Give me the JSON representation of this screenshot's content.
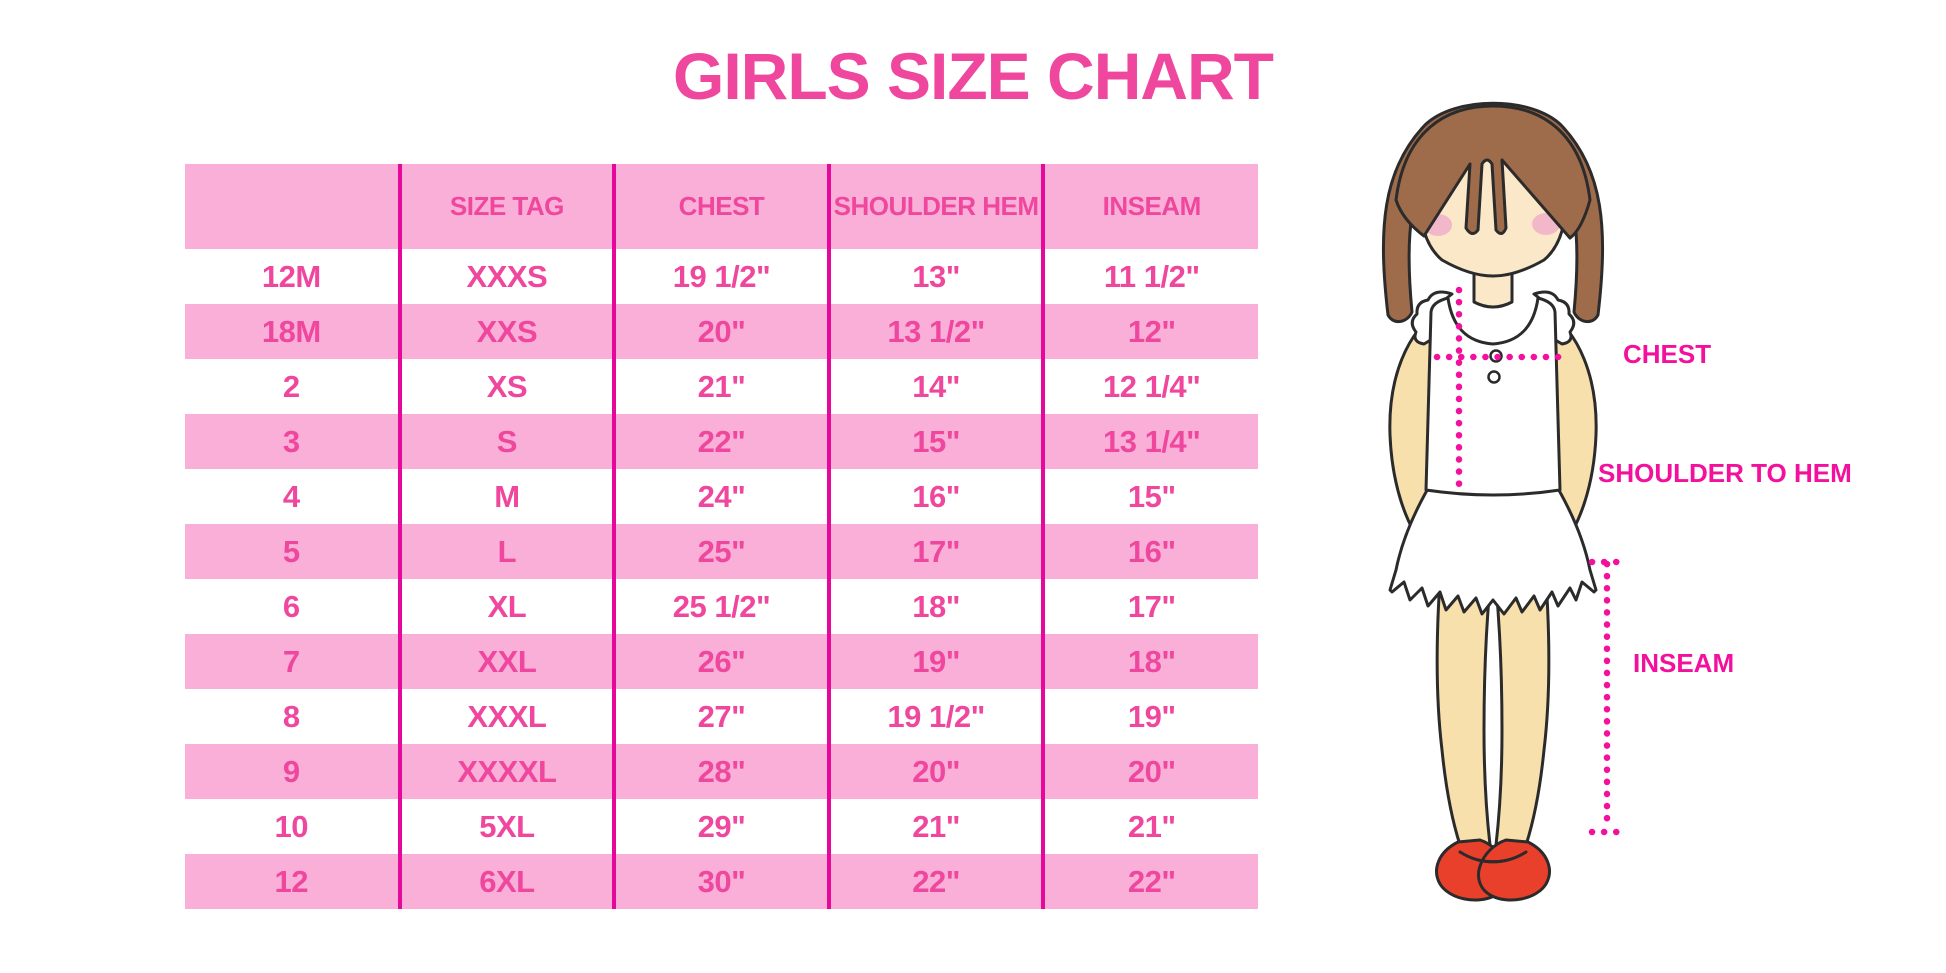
{
  "title": "GIRLS SIZE CHART",
  "colors": {
    "pink_band": "#F9AFD8",
    "divider": "#E6079B",
    "table_text": "#F0479E",
    "label_text": "#F2109C",
    "hair": "#9E6B4B",
    "skin": "#F7E0AC",
    "face": "#FAE8C8",
    "blush": "#F2B7C8",
    "shoe_red": "#E8402B",
    "outline": "#2B2B2B"
  },
  "diagram": {
    "labels": {
      "chest": "CHEST",
      "shoulder_to_hem": "SHOULDER TO HEM",
      "inseam": "INSEAM"
    }
  },
  "chart_data": {
    "type": "table",
    "title": "GIRLS SIZE CHART",
    "columns": [
      "",
      "SIZE TAG",
      "CHEST",
      "SHOULDER HEM",
      "INSEAM"
    ],
    "rows": [
      [
        "12M",
        "XXXS",
        "19 1/2\"",
        "13\"",
        "11 1/2\""
      ],
      [
        "18M",
        "XXS",
        "20\"",
        "13 1/2\"",
        "12\""
      ],
      [
        "2",
        "XS",
        "21\"",
        "14\"",
        "12 1/4\""
      ],
      [
        "3",
        "S",
        "22\"",
        "15\"",
        "13 1/4\""
      ],
      [
        "4",
        "M",
        "24\"",
        "16\"",
        "15\""
      ],
      [
        "5",
        "L",
        "25\"",
        "17\"",
        "16\""
      ],
      [
        "6",
        "XL",
        "25 1/2\"",
        "18\"",
        "17\""
      ],
      [
        "7",
        "XXL",
        "26\"",
        "19\"",
        "18\""
      ],
      [
        "8",
        "XXXL",
        "27\"",
        "19 1/2\"",
        "19\""
      ],
      [
        "9",
        "XXXXL",
        "28\"",
        "20\"",
        "20\""
      ],
      [
        "10",
        "5XL",
        "29\"",
        "21\"",
        "21\""
      ],
      [
        "12",
        "6XL",
        "30\"",
        "22\"",
        "22\""
      ]
    ],
    "layout": {
      "row_striping": "white / pink alternating",
      "grid": "vertical dividers only"
    }
  }
}
